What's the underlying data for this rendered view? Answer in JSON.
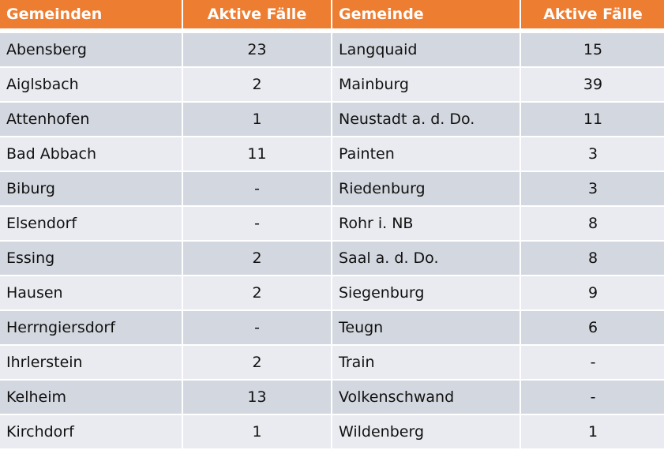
{
  "header": {
    "col1": "Gemeinden",
    "col2": "Aktive Fälle",
    "col3": "Gemeinde",
    "col4": "Aktive Fälle"
  },
  "colors": {
    "header": "#ED7D31",
    "row_dark": "#D3D7DF",
    "row_light": "#E9EBF0"
  },
  "rows": [
    {
      "left_name": "Abensberg",
      "left_cases": "23",
      "right_name": "Langquaid",
      "right_cases": "15"
    },
    {
      "left_name": "Aiglsbach",
      "left_cases": "2",
      "right_name": "Mainburg",
      "right_cases": "39"
    },
    {
      "left_name": "Attenhofen",
      "left_cases": "1",
      "right_name": "Neustadt a. d. Do.",
      "right_cases": "11"
    },
    {
      "left_name": "Bad Abbach",
      "left_cases": "11",
      "right_name": "Painten",
      "right_cases": "3"
    },
    {
      "left_name": "Biburg",
      "left_cases": "-",
      "right_name": "Riedenburg",
      "right_cases": "3"
    },
    {
      "left_name": "Elsendorf",
      "left_cases": "-",
      "right_name": "Rohr i. NB",
      "right_cases": "8"
    },
    {
      "left_name": "Essing",
      "left_cases": "2",
      "right_name": "Saal a. d. Do.",
      "right_cases": "8"
    },
    {
      "left_name": "Hausen",
      "left_cases": "2",
      "right_name": "Siegenburg",
      "right_cases": "9"
    },
    {
      "left_name": "Herrngiersdorf",
      "left_cases": "-",
      "right_name": "Teugn",
      "right_cases": "6"
    },
    {
      "left_name": "Ihrlerstein",
      "left_cases": "2",
      "right_name": "Train",
      "right_cases": "-"
    },
    {
      "left_name": "Kelheim",
      "left_cases": "13",
      "right_name": "Volkenschwand",
      "right_cases": "-"
    },
    {
      "left_name": "Kirchdorf",
      "left_cases": "1",
      "right_name": "Wildenberg",
      "right_cases": "1"
    }
  ]
}
